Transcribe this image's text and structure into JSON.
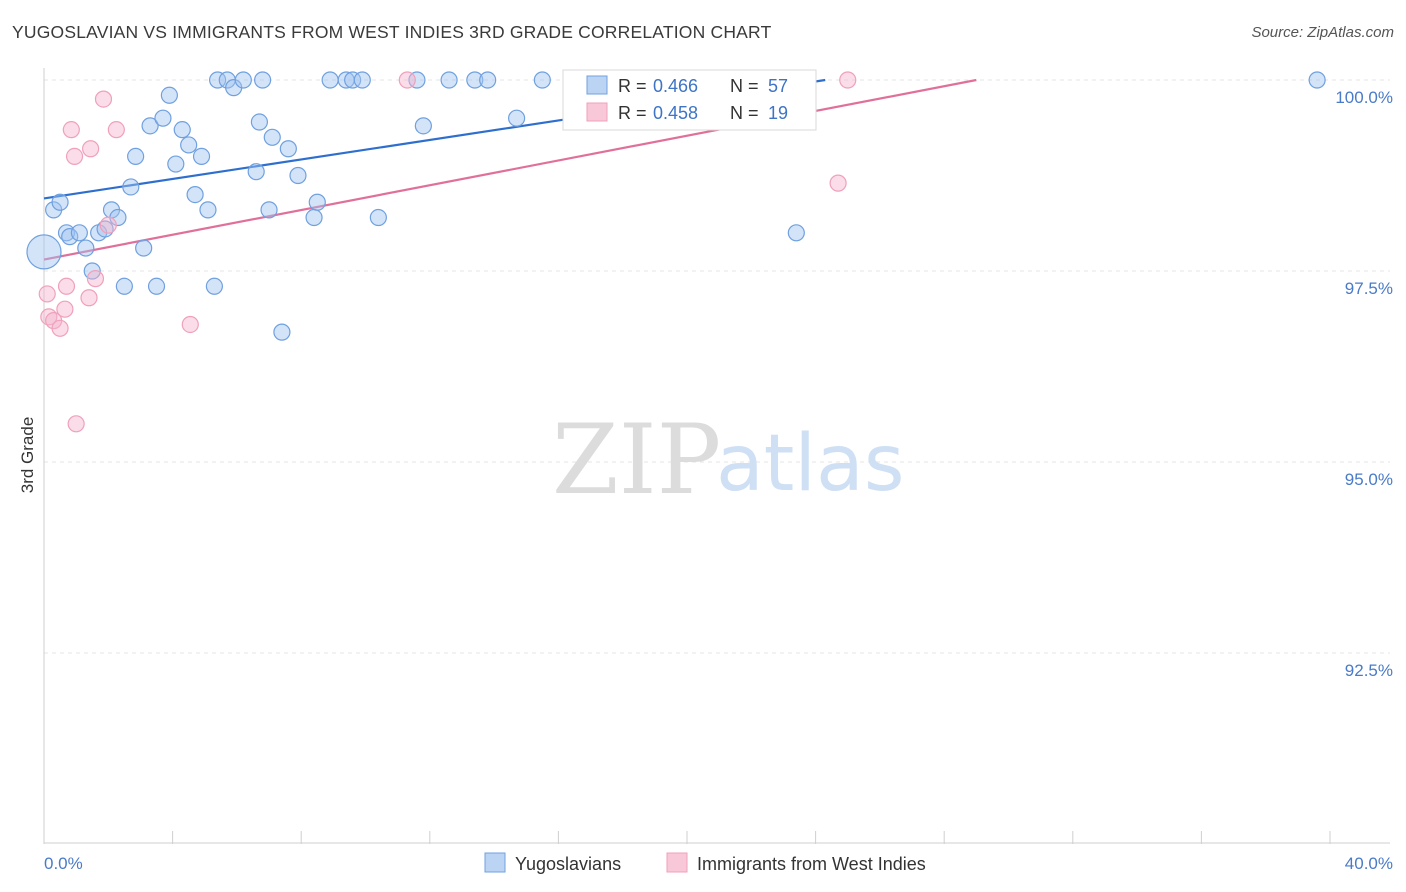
{
  "title": "YUGOSLAVIAN VS IMMIGRANTS FROM WEST INDIES 3RD GRADE CORRELATION CHART",
  "source": "Source: ZipAtlas.com",
  "watermark": {
    "zip": "ZIP",
    "atlas": "atlas"
  },
  "legend": {
    "r_label": "R =",
    "n_label": "N =",
    "rows": [
      {
        "r": "0.466",
        "n": "57"
      },
      {
        "r": "0.458",
        "n": "19"
      }
    ]
  },
  "chart_data": {
    "type": "scatter",
    "title": "YUGOSLAVIAN VS IMMIGRANTS FROM WEST INDIES 3RD GRADE CORRELATION CHART",
    "xlabel": "",
    "ylabel": "3rd Grade",
    "xlim": [
      0,
      40
    ],
    "ylim": [
      90.0,
      100.3
    ],
    "x_tick_labels": [
      "0.0%",
      "40.0%"
    ],
    "y_ticks": [
      {
        "value": 100.0,
        "label": "100.0%"
      },
      {
        "value": 97.5,
        "label": "97.5%"
      },
      {
        "value": 95.0,
        "label": "95.0%"
      },
      {
        "value": 92.5,
        "label": "92.5%"
      }
    ],
    "grid": true,
    "legend_position": "top-center",
    "colors": {
      "yugoslavians": "#6fa0e0",
      "west_indies": "#f0a0bb",
      "trend_blue": "#2e6fce",
      "trend_pink": "#e0709a"
    },
    "series": [
      {
        "name": "Yugoslavians",
        "r": 0.466,
        "n": 57,
        "trend": {
          "x0": 0.0,
          "y0": 98.45,
          "x1": 24.3,
          "y1": 100.0
        },
        "points": [
          [
            0.0,
            97.75
          ],
          [
            0.3,
            98.3
          ],
          [
            0.5,
            98.4
          ],
          [
            0.7,
            98.0
          ],
          [
            0.8,
            97.95
          ],
          [
            1.1,
            98.0
          ],
          [
            1.3,
            97.8
          ],
          [
            1.5,
            97.5
          ],
          [
            1.7,
            98.0
          ],
          [
            1.9,
            98.05
          ],
          [
            2.1,
            98.3
          ],
          [
            2.3,
            98.2
          ],
          [
            2.5,
            97.3
          ],
          [
            2.7,
            98.6
          ],
          [
            2.85,
            99.0
          ],
          [
            3.1,
            97.8
          ],
          [
            3.3,
            99.4
          ],
          [
            3.5,
            97.3
          ],
          [
            3.7,
            99.5
          ],
          [
            3.9,
            99.8
          ],
          [
            4.1,
            98.9
          ],
          [
            4.3,
            99.35
          ],
          [
            4.5,
            99.15
          ],
          [
            4.7,
            98.5
          ],
          [
            4.9,
            99.0
          ],
          [
            5.1,
            98.3
          ],
          [
            5.3,
            97.3
          ],
          [
            5.4,
            100.0
          ],
          [
            5.7,
            100.0
          ],
          [
            5.9,
            99.9
          ],
          [
            6.2,
            100.0
          ],
          [
            6.6,
            98.8
          ],
          [
            6.7,
            99.45
          ],
          [
            6.8,
            100.0
          ],
          [
            7.0,
            98.3
          ],
          [
            7.1,
            99.25
          ],
          [
            7.4,
            96.7
          ],
          [
            7.6,
            99.1
          ],
          [
            7.9,
            98.75
          ],
          [
            8.4,
            98.2
          ],
          [
            8.5,
            98.4
          ],
          [
            8.9,
            100.0
          ],
          [
            9.4,
            100.0
          ],
          [
            9.6,
            100.0
          ],
          [
            9.9,
            100.0
          ],
          [
            10.4,
            98.2
          ],
          [
            11.6,
            100.0
          ],
          [
            11.8,
            99.4
          ],
          [
            12.6,
            100.0
          ],
          [
            13.4,
            100.0
          ],
          [
            13.8,
            100.0
          ],
          [
            14.7,
            99.5
          ],
          [
            15.5,
            100.0
          ],
          [
            20.6,
            100.0
          ],
          [
            20.9,
            100.0
          ],
          [
            23.4,
            98.0
          ],
          [
            39.6,
            100.0
          ]
        ]
      },
      {
        "name": "Immigrants from West Indies",
        "r": 0.458,
        "n": 19,
        "trend": {
          "x0": 0.0,
          "y0": 97.65,
          "x1": 29.0,
          "y1": 100.0
        },
        "points": [
          [
            0.1,
            97.2
          ],
          [
            0.15,
            96.9
          ],
          [
            0.3,
            96.85
          ],
          [
            0.5,
            96.75
          ],
          [
            0.65,
            97.0
          ],
          [
            0.7,
            97.3
          ],
          [
            0.85,
            99.35
          ],
          [
            0.95,
            99.0
          ],
          [
            1.0,
            95.5
          ],
          [
            1.4,
            97.15
          ],
          [
            1.45,
            99.1
          ],
          [
            1.6,
            97.4
          ],
          [
            1.85,
            99.75
          ],
          [
            2.0,
            98.1
          ],
          [
            2.25,
            99.35
          ],
          [
            4.55,
            96.8
          ],
          [
            11.3,
            100.0
          ],
          [
            24.7,
            98.65
          ],
          [
            25.0,
            100.0
          ]
        ]
      }
    ]
  },
  "bottom_legend": [
    {
      "label": "Yugoslavians"
    },
    {
      "label": "Immigrants from West Indies"
    }
  ]
}
